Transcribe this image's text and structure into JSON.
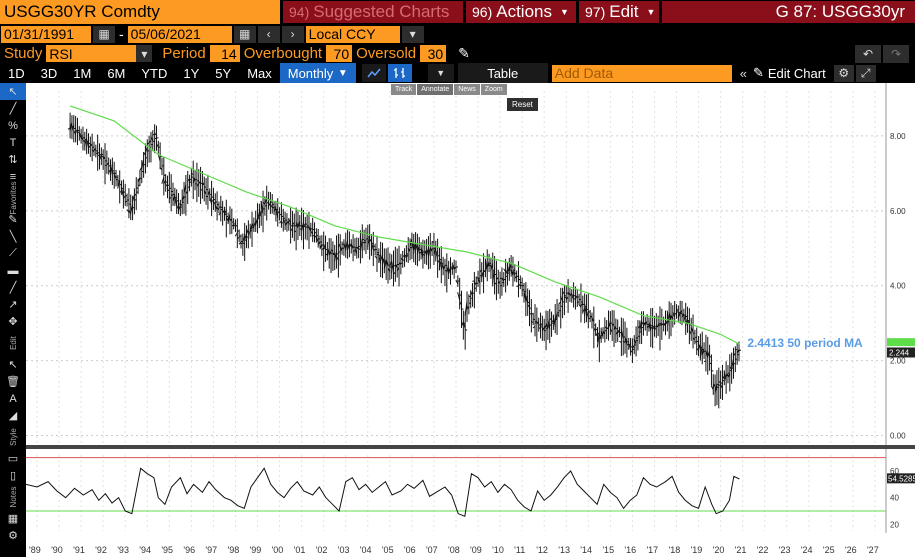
{
  "header": {
    "ticker": "USGG30YR Comdty",
    "suggested_num": "94)",
    "suggested_label": "Suggested Charts",
    "actions_num": "96)",
    "actions_label": "Actions",
    "edit_num": "97)",
    "edit_label": "Edit",
    "page_title": "G 87: USGG30yr"
  },
  "date_range": {
    "start": "01/31/1991",
    "end": "05/06/2021",
    "separator": "-",
    "currency": "Local CCY"
  },
  "study": {
    "study_label": "Study",
    "study_value": "RSI",
    "period_label": "Period",
    "period_value": "14",
    "overbought_label": "Overbought",
    "overbought_value": "70",
    "oversold_label": "Oversold",
    "oversold_value": "30"
  },
  "toolbar": {
    "ranges": [
      "1D",
      "3D",
      "1M",
      "6M",
      "YTD",
      "1Y",
      "5Y",
      "Max"
    ],
    "frequency": "Monthly",
    "table_label": "Table",
    "add_data_placeholder": "Add Data",
    "edit_chart_label": "Edit Chart"
  },
  "mode_popup": {
    "items": [
      "Track",
      "Annotate",
      "News",
      "Zoom"
    ],
    "active": "Annotate",
    "reset": "Reset"
  },
  "side_labels": {
    "favorites": "Favorites",
    "edit": "Edit",
    "style": "Style",
    "notes": "Notes"
  },
  "colors": {
    "orange": "#fd9a22",
    "red": "#8a0f1b",
    "blue": "#1b68c6",
    "ma_green": "#5fdc4a",
    "rsi_upper": "#d9534f",
    "rsi_lower": "#5fdc4a",
    "ma_label": "#5a9ce6"
  },
  "chart_data": [
    {
      "type": "line",
      "subtype": "ohlc-bars-with-moving-average",
      "title": "",
      "x_tick_labels": [
        "'89",
        "'90",
        "'91",
        "'92",
        "'93",
        "'94",
        "'95",
        "'96",
        "'97",
        "'98",
        "'99",
        "'00",
        "'01",
        "'02",
        "'03",
        "'04",
        "'05",
        "'06",
        "'07",
        "'08",
        "'09",
        "'10",
        "'11",
        "'12",
        "'13",
        "'14",
        "'15",
        "'16",
        "'17",
        "'18",
        "'19",
        "'20",
        "'21",
        "'22",
        "'23",
        "'24",
        "'25",
        "'26",
        "'27"
      ],
      "y_tick_labels": [
        "0.00",
        "2.00",
        "4.00",
        "6.00",
        "8.00"
      ],
      "ylim": [
        -0.2,
        9.2
      ],
      "xlim": [
        1989.0,
        2028.0
      ],
      "series": [
        {
          "name": "",
          "kind": "price",
          "x": [
            1991.0,
            1991.5,
            1992.0,
            1992.5,
            1993.0,
            1993.5,
            1993.8,
            1994.0,
            1994.5,
            1994.9,
            1995.3,
            1995.8,
            1996.0,
            1996.5,
            1997.0,
            1997.5,
            1998.0,
            1998.5,
            1998.8,
            1999.0,
            1999.5,
            2000.0,
            2000.5,
            2001.0,
            2001.5,
            2002.0,
            2002.5,
            2003.0,
            2003.5,
            2004.0,
            2004.5,
            2005.0,
            2005.5,
            2006.0,
            2006.5,
            2007.0,
            2007.5,
            2008.0,
            2008.5,
            2008.9,
            2009.0,
            2009.5,
            2010.0,
            2010.5,
            2011.0,
            2011.5,
            2012.0,
            2012.5,
            2013.0,
            2013.5,
            2014.0,
            2014.5,
            2015.0,
            2015.5,
            2016.0,
            2016.5,
            2017.0,
            2017.5,
            2018.0,
            2018.5,
            2018.9,
            2019.5,
            2020.0,
            2020.2,
            2020.5,
            2021.0,
            2021.35
          ],
          "y": [
            8.3,
            8.0,
            7.7,
            7.4,
            7.0,
            6.4,
            6.0,
            6.5,
            7.6,
            8.0,
            6.8,
            6.3,
            6.1,
            6.9,
            6.7,
            6.3,
            5.9,
            5.6,
            5.1,
            5.3,
            5.8,
            6.3,
            5.9,
            5.6,
            5.6,
            5.5,
            5.0,
            4.8,
            5.1,
            5.0,
            5.3,
            4.8,
            4.5,
            4.6,
            5.1,
            4.9,
            5.0,
            4.4,
            4.5,
            2.7,
            3.4,
            4.2,
            4.6,
            4.0,
            4.5,
            4.0,
            3.1,
            2.8,
            3.1,
            3.8,
            3.7,
            3.3,
            2.6,
            3.0,
            2.7,
            2.3,
            3.0,
            2.9,
            3.0,
            3.3,
            3.2,
            2.4,
            2.1,
            1.2,
            1.4,
            1.8,
            2.3
          ]
        },
        {
          "name": "50 period MA",
          "kind": "moving_average",
          "latest_value": "2.4413",
          "x": [
            1991.0,
            1993.0,
            1995.0,
            1997.0,
            1999.0,
            2001.0,
            2003.0,
            2005.0,
            2007.0,
            2009.0,
            2011.0,
            2013.0,
            2015.0,
            2017.0,
            2019.0,
            2020.5,
            2021.35
          ],
          "y": [
            8.8,
            8.4,
            7.5,
            7.0,
            6.5,
            6.1,
            5.6,
            5.3,
            5.1,
            4.9,
            4.6,
            4.1,
            3.7,
            3.2,
            3.0,
            2.7,
            2.44
          ]
        }
      ],
      "annotations": [
        {
          "text": "2.4413 50 period MA"
        },
        {
          "text": "2.244"
        }
      ]
    },
    {
      "type": "line",
      "subtype": "rsi",
      "title": "",
      "y_tick_labels": [
        "20",
        "40",
        "60"
      ],
      "ylim": [
        15,
        72
      ],
      "levels": {
        "overbought": 70,
        "oversold": 30
      },
      "series": [
        {
          "name": "RSI",
          "x": [
            1989.0,
            1989.5,
            1990.0,
            1990.4,
            1990.8,
            1991.2,
            1991.6,
            1992.0,
            1992.3,
            1992.6,
            1992.9,
            1993.2,
            1993.5,
            1993.8,
            1994.0,
            1994.2,
            1994.5,
            1994.8,
            1995.0,
            1995.3,
            1995.6,
            1996.0,
            1996.3,
            1996.6,
            1997.0,
            1997.3,
            1997.6,
            1998.0,
            1998.3,
            1998.6,
            1998.9,
            1999.2,
            1999.5,
            1999.8,
            2000.1,
            2000.4,
            2000.7,
            2001.0,
            2001.3,
            2001.6,
            2002.0,
            2002.3,
            2002.6,
            2002.9,
            2003.2,
            2003.5,
            2003.8,
            2004.1,
            2004.4,
            2004.7,
            2005.0,
            2005.3,
            2005.6,
            2006.0,
            2006.3,
            2006.6,
            2007.0,
            2007.3,
            2007.6,
            2008.0,
            2008.3,
            2008.6,
            2008.9,
            2009.2,
            2009.5,
            2009.8,
            2010.1,
            2010.4,
            2010.7,
            2011.0,
            2011.3,
            2011.6,
            2011.9,
            2012.2,
            2012.5,
            2012.8,
            2013.1,
            2013.4,
            2013.7,
            2014.0,
            2014.3,
            2014.6,
            2014.9,
            2015.2,
            2015.5,
            2015.8,
            2016.1,
            2016.4,
            2016.7,
            2017.0,
            2017.3,
            2017.6,
            2018.0,
            2018.3,
            2018.6,
            2018.9,
            2019.2,
            2019.5,
            2019.8,
            2020.1,
            2020.3,
            2020.6,
            2020.9,
            2021.1,
            2021.35
          ],
          "y": [
            50,
            48,
            52,
            45,
            40,
            47,
            42,
            46,
            38,
            43,
            36,
            40,
            30,
            28,
            45,
            62,
            58,
            55,
            40,
            35,
            48,
            55,
            43,
            50,
            44,
            52,
            46,
            40,
            38,
            34,
            32,
            48,
            55,
            62,
            50,
            44,
            40,
            47,
            52,
            45,
            42,
            48,
            40,
            35,
            30,
            52,
            55,
            46,
            50,
            44,
            48,
            52,
            42,
            45,
            50,
            47,
            53,
            41,
            44,
            48,
            42,
            28,
            26,
            58,
            55,
            48,
            52,
            44,
            50,
            46,
            38,
            33,
            30,
            45,
            38,
            42,
            48,
            55,
            60,
            50,
            45,
            40,
            35,
            50,
            44,
            40,
            32,
            38,
            42,
            55,
            50,
            48,
            52,
            56,
            44,
            38,
            34,
            32,
            48,
            35,
            28,
            30,
            38,
            56,
            54
          ]
        }
      ],
      "latest_value": "54.5285"
    }
  ]
}
